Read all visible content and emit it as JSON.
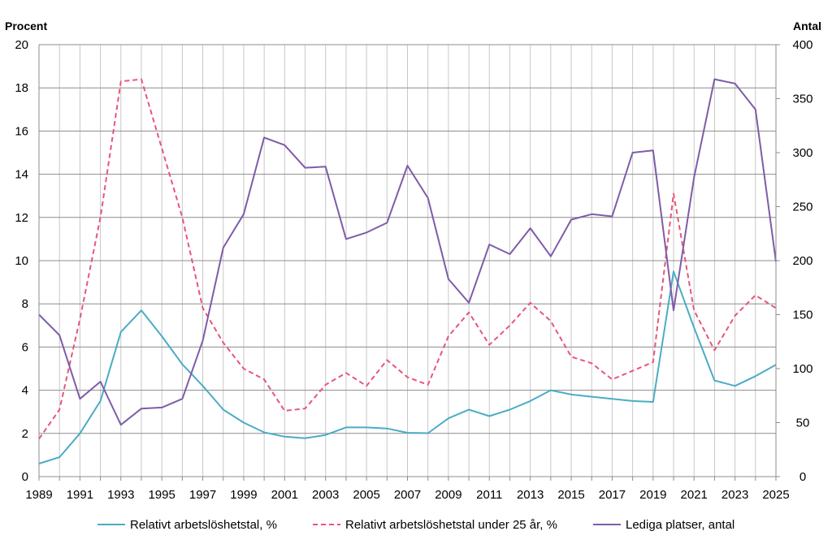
{
  "chart_data": {
    "type": "line",
    "title": "",
    "y_left_label": "Procent",
    "y_right_label": "Antal",
    "ylim_left": [
      0,
      20
    ],
    "ylim_right": [
      0,
      400
    ],
    "y_left_ticks": [
      "0",
      "2",
      "4",
      "6",
      "8",
      "10",
      "12",
      "14",
      "16",
      "18",
      "20"
    ],
    "y_right_ticks": [
      "0",
      "50",
      "100",
      "150",
      "200",
      "250",
      "300",
      "350",
      "400"
    ],
    "x": [
      1989,
      1990,
      1991,
      1992,
      1993,
      1994,
      1995,
      1996,
      1997,
      1998,
      1999,
      2000,
      2001,
      2002,
      2003,
      2004,
      2005,
      2006,
      2007,
      2008,
      2009,
      2010,
      2011,
      2012,
      2013,
      2014,
      2015,
      2016,
      2017,
      2018,
      2019,
      2020,
      2021,
      2022,
      2023,
      2024,
      2025
    ],
    "x_tick_labels": [
      "1989",
      "1991",
      "1993",
      "1995",
      "1997",
      "1999",
      "2001",
      "2003",
      "2005",
      "2007",
      "2009",
      "2011",
      "2013",
      "2015",
      "2017",
      "2019",
      "2021",
      "2023",
      "2025"
    ],
    "grid": "vertical and horizontal",
    "legend_position": "bottom",
    "series": [
      {
        "name": "Relativt arbetslöshetstal, %",
        "axis": "left",
        "color": "#4BACC6",
        "dash": "solid",
        "values": [
          0.6,
          0.9,
          2.0,
          3.5,
          6.7,
          7.7,
          6.5,
          5.2,
          4.2,
          3.1,
          2.5,
          2.05,
          1.85,
          1.78,
          1.93,
          2.28,
          2.28,
          2.23,
          2.03,
          2.01,
          2.7,
          3.1,
          2.8,
          3.1,
          3.5,
          4.0,
          3.8,
          3.7,
          3.6,
          3.5,
          3.46,
          9.5,
          6.9,
          4.45,
          4.2,
          4.65,
          5.18
        ]
      },
      {
        "name": "Relativt arbetslöshetstal under 25 år, %",
        "axis": "left",
        "color": "#E8557A",
        "dash": "dashed",
        "values": [
          1.75,
          3.1,
          7.3,
          12.0,
          18.3,
          18.4,
          15.2,
          12.0,
          7.8,
          6.2,
          5.0,
          4.5,
          3.05,
          3.15,
          4.25,
          4.8,
          4.2,
          5.4,
          4.6,
          4.25,
          6.5,
          7.6,
          6.1,
          7.0,
          8.05,
          7.2,
          5.55,
          5.25,
          4.5,
          4.9,
          5.3,
          13.1,
          7.7,
          5.85,
          7.45,
          8.4,
          7.8
        ]
      },
      {
        "name": "Lediga platser, antal",
        "axis": "right",
        "color": "#7E5CA8",
        "dash": "solid",
        "values": [
          150,
          131,
          72,
          88,
          48,
          63,
          64,
          72,
          126,
          212,
          243,
          314,
          307,
          286,
          287,
          220,
          226,
          235,
          288,
          258,
          183,
          161,
          215,
          206,
          230,
          204,
          238,
          243,
          241,
          300,
          302,
          154,
          277,
          368,
          364,
          340,
          199
        ]
      }
    ]
  }
}
